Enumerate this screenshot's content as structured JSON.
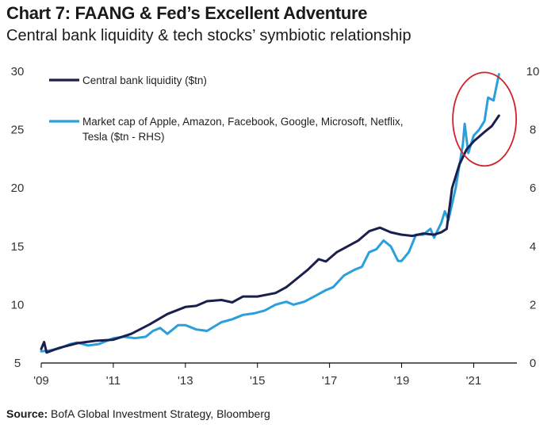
{
  "header": {
    "title": "Chart 7: FAANG & Fed’s Excellent Adventure",
    "subtitle": "Central bank liquidity & tech stocks’ symbiotic relationship"
  },
  "footer": {
    "source_label": "Source:",
    "source_text": "BofA Global Investment Strategy, Bloomberg"
  },
  "colors": {
    "liquidity": "#1a1f4d",
    "market_cap": "#2b9fdc",
    "highlight_circle": "#d0202a",
    "axis": "#000000"
  },
  "chart_data": {
    "type": "line",
    "title": "Chart 7: FAANG & Fed’s Excellent Adventure",
    "subtitle": "Central bank liquidity & tech stocks’ symbiotic relationship",
    "x_tick_labels": [
      "'09",
      "'11",
      "'13",
      "'15",
      "'17",
      "'19",
      "'21"
    ],
    "x_tick_years": [
      2009,
      2011,
      2013,
      2015,
      2017,
      2019,
      2021
    ],
    "xlim": [
      2009,
      2022.2
    ],
    "y_left": {
      "lim": [
        5,
        30
      ],
      "ticks": [
        5,
        10,
        15,
        20,
        25,
        30
      ]
    },
    "y_right": {
      "lim": [
        0,
        10
      ],
      "ticks": [
        0,
        2,
        4,
        6,
        8,
        10
      ]
    },
    "grid": false,
    "legend_position": "top-left",
    "highlight": {
      "shape": "ellipse",
      "center_year": 2021.3,
      "center_left_value": 25.9
    },
    "series": [
      {
        "name": "Central bank liquidity ($tn)",
        "axis": "left",
        "x": [
          2009.0,
          2009.08,
          2009.15,
          2009.5,
          2010.0,
          2010.5,
          2011.0,
          2011.5,
          2012.0,
          2012.5,
          2013.0,
          2013.3,
          2013.6,
          2014.0,
          2014.3,
          2014.6,
          2015.0,
          2015.5,
          2015.8,
          2016.0,
          2016.4,
          2016.7,
          2016.9,
          2017.2,
          2017.5,
          2017.8,
          2018.1,
          2018.4,
          2018.7,
          2019.0,
          2019.3,
          2019.6,
          2019.9,
          2020.1,
          2020.2,
          2020.25,
          2020.4,
          2020.6,
          2020.8,
          2021.0,
          2021.3,
          2021.5,
          2021.7
        ],
        "values": [
          6.2,
          6.8,
          5.9,
          6.3,
          6.7,
          6.9,
          7.0,
          7.5,
          8.3,
          9.2,
          9.8,
          9.9,
          10.3,
          10.4,
          10.2,
          10.7,
          10.7,
          11.0,
          11.5,
          12.0,
          13.0,
          13.9,
          13.7,
          14.5,
          15.0,
          15.5,
          16.3,
          16.6,
          16.2,
          16.0,
          15.9,
          16.1,
          16.0,
          16.2,
          16.4,
          16.5,
          20.0,
          22.0,
          23.3,
          24.0,
          24.8,
          25.3,
          26.2
        ]
      },
      {
        "name": "Market cap of Apple, Amazon, Facebook, Google, Microsoft, Netflix, Tesla ($tn - RHS)",
        "axis": "right",
        "x": [
          2009.0,
          2009.2,
          2009.5,
          2009.8,
          2010.0,
          2010.3,
          2010.6,
          2010.9,
          2011.0,
          2011.3,
          2011.6,
          2011.9,
          2012.1,
          2012.3,
          2012.5,
          2012.8,
          2013.0,
          2013.3,
          2013.6,
          2014.0,
          2014.3,
          2014.6,
          2014.9,
          2015.2,
          2015.5,
          2015.8,
          2016.0,
          2016.3,
          2016.6,
          2016.9,
          2017.1,
          2017.4,
          2017.7,
          2017.9,
          2018.1,
          2018.3,
          2018.5,
          2018.7,
          2018.9,
          2019.0,
          2019.2,
          2019.4,
          2019.6,
          2019.8,
          2019.9,
          2020.1,
          2020.2,
          2020.3,
          2020.5,
          2020.7,
          2020.75,
          2020.85,
          2021.0,
          2021.15,
          2021.3,
          2021.4,
          2021.55,
          2021.7
        ],
        "values": [
          0.4,
          0.42,
          0.5,
          0.65,
          0.7,
          0.6,
          0.65,
          0.8,
          0.85,
          0.9,
          0.85,
          0.9,
          1.1,
          1.2,
          1.0,
          1.3,
          1.3,
          1.15,
          1.1,
          1.4,
          1.5,
          1.65,
          1.7,
          1.8,
          2.0,
          2.1,
          2.0,
          2.1,
          2.3,
          2.5,
          2.6,
          3.0,
          3.2,
          3.3,
          3.8,
          3.9,
          4.2,
          4.0,
          3.5,
          3.5,
          3.8,
          4.4,
          4.4,
          4.6,
          4.3,
          4.8,
          5.2,
          4.9,
          6.0,
          7.5,
          8.2,
          7.2,
          7.8,
          8.0,
          8.3,
          9.1,
          9.0,
          9.9
        ]
      }
    ]
  }
}
